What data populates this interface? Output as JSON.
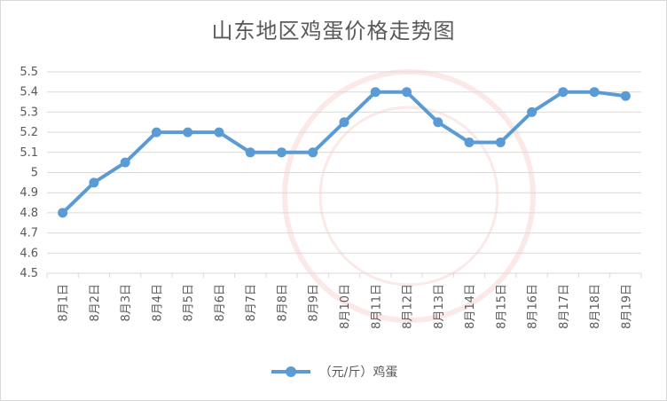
{
  "chart_data": {
    "type": "line",
    "title": "山东地区鸡蛋价格走势图",
    "xlabel": "",
    "ylabel": "",
    "categories": [
      "8月1日",
      "8月2日",
      "8月3日",
      "8月4日",
      "8月5日",
      "8月6日",
      "8月7日",
      "8月8日",
      "8月9日",
      "8月10日",
      "8月11日",
      "8月12日",
      "8月13日",
      "8月14日",
      "8月15日",
      "8月16日",
      "8月17日",
      "8月18日",
      "8月19日"
    ],
    "series": [
      {
        "name": "（元/斤）鸡蛋",
        "values": [
          4.8,
          4.95,
          5.05,
          5.2,
          5.2,
          5.2,
          5.1,
          5.1,
          5.1,
          5.25,
          5.4,
          5.4,
          5.25,
          5.15,
          5.15,
          5.3,
          5.4,
          5.4,
          5.38
        ]
      }
    ],
    "ylim": [
      4.5,
      5.5
    ],
    "yticks": [
      "4.5",
      "4.6",
      "4.7",
      "4.8",
      "4.9",
      "5",
      "5.1",
      "5.2",
      "5.3",
      "5.4",
      "5.5"
    ],
    "grid": true,
    "legend": "bottom",
    "colors": {
      "line": "#5b9bd5",
      "grid": "#d9d9d9",
      "text": "#595959"
    }
  }
}
